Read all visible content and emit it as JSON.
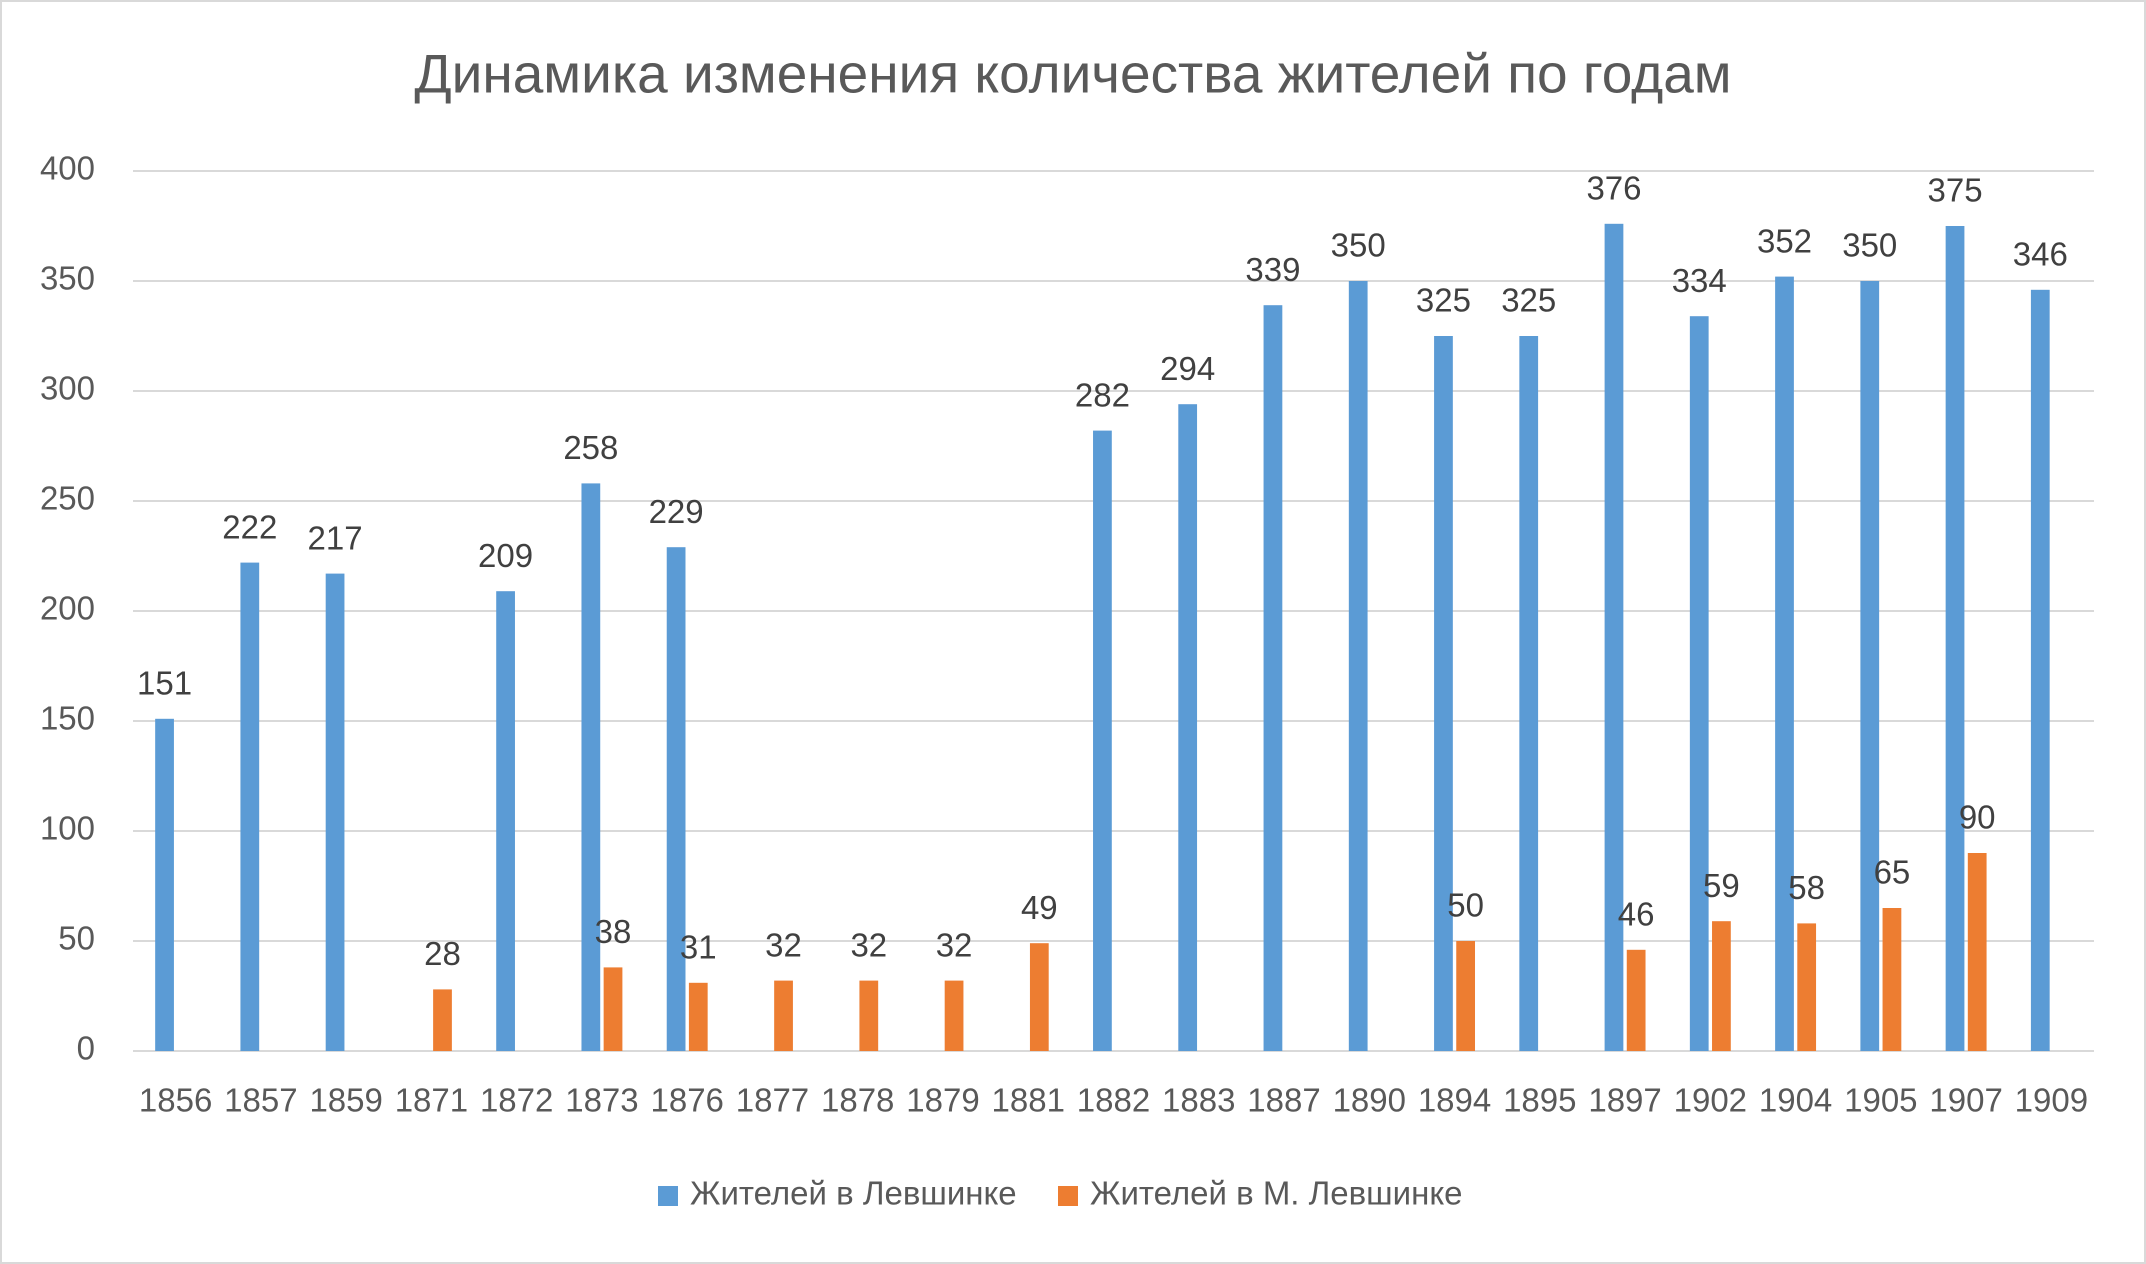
{
  "chart_data": {
    "type": "bar",
    "title": "Динамика изменения количества жителей по годам",
    "categories": [
      "1856",
      "1857",
      "1859",
      "1871",
      "1872",
      "1873",
      "1876",
      "1877",
      "1878",
      "1879",
      "1881",
      "1882",
      "1883",
      "1887",
      "1890",
      "1894",
      "1895",
      "1897",
      "1902",
      "1904",
      "1905",
      "1907",
      "1909"
    ],
    "series": [
      {
        "name": "Жителей в Левшинке",
        "color": "#5b9bd5",
        "values": [
          151,
          222,
          217,
          null,
          209,
          258,
          229,
          null,
          null,
          null,
          null,
          282,
          294,
          339,
          350,
          325,
          325,
          376,
          334,
          352,
          350,
          375,
          346
        ]
      },
      {
        "name": "Жителей в М. Левшинке",
        "color": "#ed7d31",
        "values": [
          null,
          null,
          null,
          28,
          null,
          38,
          31,
          32,
          32,
          32,
          49,
          null,
          null,
          null,
          null,
          50,
          null,
          46,
          59,
          58,
          65,
          90,
          null
        ]
      }
    ],
    "ylim": [
      0,
      400
    ],
    "yticks": [
      0,
      50,
      100,
      150,
      200,
      250,
      300,
      350,
      400
    ],
    "grid": true,
    "legend": "bottom"
  }
}
